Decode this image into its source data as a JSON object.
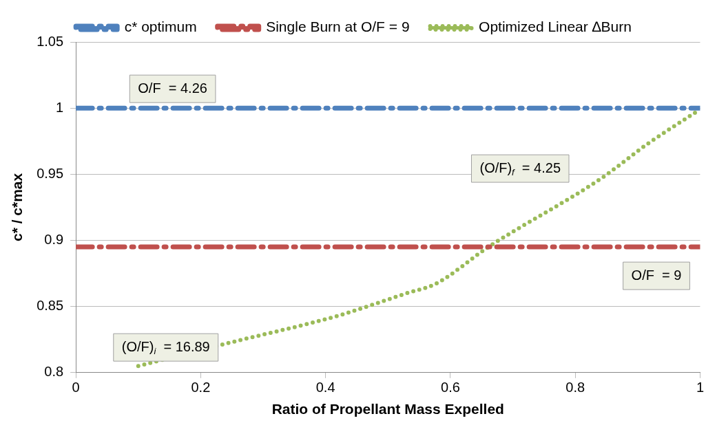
{
  "chart_data": {
    "type": "line",
    "xlabel": "Ratio of Propellant Mass Expelled",
    "ylabel": "c* / c*max",
    "xlim": [
      0,
      1
    ],
    "xticks": [
      0,
      0.2,
      0.4,
      0.6,
      0.8,
      1
    ],
    "ylim": [
      0.8,
      1.05
    ],
    "yticks": [
      0.8,
      0.85,
      0.9,
      0.95,
      1,
      1.05
    ],
    "grid": "y",
    "legend": "top",
    "marker": "none",
    "series": [
      {
        "name": "c* optimum",
        "color": "#4f81bd",
        "line_style": "dashed",
        "x": [
          0,
          1
        ],
        "values": [
          1,
          1
        ]
      },
      {
        "name": "Single Burn at O/F = 9",
        "color": "#c0504d",
        "line_style": "dashed",
        "x": [
          0,
          1
        ],
        "values": [
          0.895,
          0.895
        ]
      },
      {
        "name": "Optimized Linear ∆Burn",
        "color": "#9bbb59",
        "line_style": "dotted",
        "x": [
          0.1,
          0.25,
          0.42,
          0.53,
          0.576,
          0.661,
          0.842,
          0.916,
          1
        ],
        "values": [
          0.805,
          0.823,
          0.843,
          0.86,
          0.867,
          0.895,
          0.947,
          0.973,
          0.999
        ]
      }
    ],
    "annotations": [
      {
        "text": "O/F  = 4.26",
        "x": 0.155,
        "y": 1
      },
      {
        "text": "(O/F)$_{f}$  = 4.25",
        "x": 0.842,
        "y": 0.947
      },
      {
        "text": "O/F  = 9",
        "x": 0.93,
        "y": 0.895
      },
      {
        "text": "(O/F)$_{i}$  = 16.89",
        "x": 0.1,
        "y": 0.805
      }
    ]
  }
}
